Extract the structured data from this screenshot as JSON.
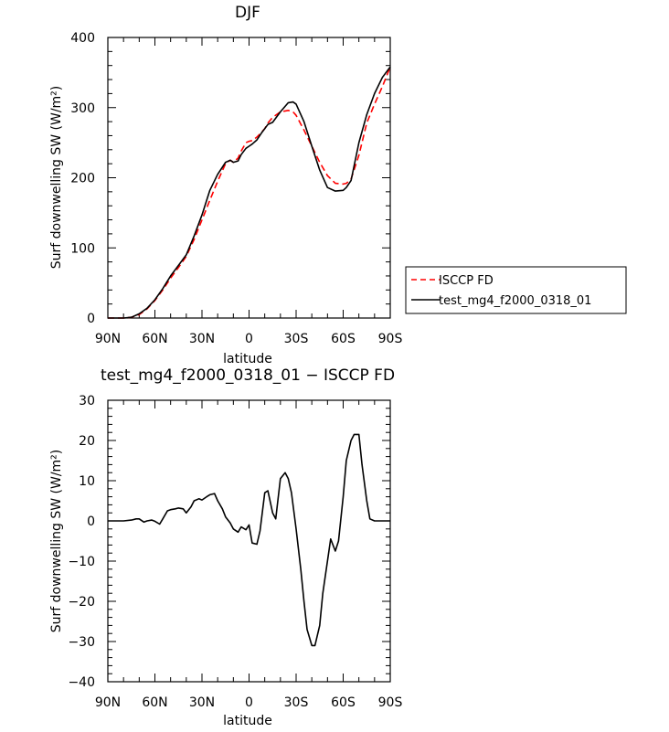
{
  "chart_data": [
    {
      "type": "line",
      "title": "DJF",
      "xlabel": "latitude",
      "ylabel": "Surf downwelling SW (W/m²)",
      "xlim": [
        90,
        -90
      ],
      "ylim": [
        0,
        400
      ],
      "xtick_values": [
        90,
        60,
        30,
        0,
        -30,
        -60,
        -90
      ],
      "xtick_labels": [
        "90N",
        "60N",
        "30N",
        "0",
        "30S",
        "60S",
        "90S"
      ],
      "ytick_values": [
        0,
        100,
        200,
        300,
        400
      ],
      "ytick_labels": [
        "0",
        "100",
        "200",
        "300",
        "400"
      ],
      "legend": "outside-right",
      "series": [
        {
          "name": "ISCCP FD",
          "color": "#ff0000",
          "dash": "dashed",
          "x": [
            90,
            85,
            80,
            75,
            70,
            65,
            60,
            55,
            50,
            45,
            40,
            35,
            30,
            25,
            20,
            17,
            15,
            12,
            10,
            7,
            5,
            2,
            0,
            -2,
            -5,
            -8,
            -10,
            -12,
            -15,
            -20,
            -25,
            -28,
            -30,
            -35,
            -40,
            -45,
            -50,
            -55,
            -60,
            -62,
            -65,
            -70,
            -75,
            -80,
            -85,
            -90
          ],
          "y": [
            0,
            0,
            0,
            1,
            5,
            13,
            25,
            40,
            57,
            72,
            88,
            112,
            140,
            168,
            195,
            210,
            220,
            225,
            222,
            228,
            238,
            250,
            252,
            253,
            258,
            265,
            270,
            278,
            286,
            294,
            296,
            294,
            289,
            268,
            245,
            222,
            203,
            192,
            191,
            192,
            198,
            232,
            278,
            305,
            330,
            358
          ]
        },
        {
          "name": "test_mg4_f2000_0318_01",
          "color": "#000000",
          "dash": "solid",
          "x": [
            90,
            85,
            80,
            75,
            70,
            65,
            60,
            55,
            50,
            45,
            40,
            35,
            30,
            25,
            20,
            17,
            15,
            12,
            10,
            7,
            5,
            2,
            0,
            -2,
            -5,
            -8,
            -10,
            -12,
            -15,
            -20,
            -25,
            -28,
            -30,
            -35,
            -40,
            -45,
            -50,
            -55,
            -60,
            -62,
            -65,
            -70,
            -75,
            -80,
            -85,
            -90
          ],
          "y": [
            0,
            0,
            0,
            1,
            6,
            14,
            26,
            42,
            60,
            75,
            90,
            117,
            147,
            182,
            205,
            215,
            222,
            225,
            222,
            224,
            233,
            242,
            245,
            248,
            254,
            264,
            270,
            276,
            279,
            294,
            307,
            308,
            305,
            280,
            245,
            211,
            186,
            181,
            182,
            186,
            196,
            250,
            290,
            320,
            343,
            358
          ]
        }
      ]
    },
    {
      "type": "line",
      "title": "test_mg4_f2000_0318_01 − ISCCP FD",
      "xlabel": "latitude",
      "ylabel": "Surf downwelling SW (W/m²)",
      "xlim": [
        90,
        -90
      ],
      "ylim": [
        -40,
        30
      ],
      "xtick_values": [
        90,
        60,
        30,
        0,
        -30,
        -60,
        -90
      ],
      "xtick_labels": [
        "90N",
        "60N",
        "30N",
        "0",
        "30S",
        "60S",
        "90S"
      ],
      "ytick_values": [
        30,
        20,
        10,
        0,
        -10,
        -20,
        -30,
        -40
      ],
      "ytick_labels": [
        "30",
        "20",
        "10",
        "0",
        "−10",
        "−20",
        "−30",
        "−40"
      ],
      "series": [
        {
          "color": "#000000",
          "dash": "solid",
          "x": [
            90,
            85,
            80,
            75,
            72,
            70,
            67,
            65,
            62,
            60,
            57,
            55,
            52,
            50,
            47,
            45,
            42,
            40,
            37,
            35,
            32,
            30,
            27,
            25,
            22,
            20,
            17,
            15,
            12,
            10,
            7,
            5,
            2,
            0,
            -2,
            -5,
            -7,
            -10,
            -12,
            -15,
            -17,
            -20,
            -23,
            -25,
            -27,
            -30,
            -33,
            -35,
            -37,
            -40,
            -42,
            -45,
            -47,
            -50,
            -52,
            -55,
            -57,
            -60,
            -62,
            -65,
            -67,
            -70,
            -72,
            -75,
            -77,
            -80,
            -82,
            -85,
            -87,
            -90
          ],
          "y": [
            0,
            0,
            0,
            0.2,
            0.5,
            0.5,
            -0.3,
            0,
            0.2,
            -0.1,
            -0.8,
            0.5,
            2.5,
            2.8,
            3,
            3.2,
            3.0,
            2.0,
            3.5,
            5.0,
            5.5,
            5.2,
            6.0,
            6.5,
            6.8,
            5.0,
            3.0,
            1.0,
            -0.5,
            -2.0,
            -2.8,
            -1.5,
            -2.2,
            -1.0,
            -5.5,
            -5.8,
            -2.5,
            7.0,
            7.5,
            2.0,
            0.5,
            10.5,
            12.0,
            10.5,
            7.0,
            -2.0,
            -12.0,
            -20.0,
            -27.0,
            -31.0,
            -31.0,
            -26.0,
            -18.0,
            -10.0,
            -4.5,
            -7.5,
            -5.0,
            6.0,
            15.0,
            20.0,
            21.5,
            21.5,
            14.0,
            5.0,
            0.5,
            0,
            0,
            0,
            0,
            0
          ]
        }
      ]
    }
  ]
}
